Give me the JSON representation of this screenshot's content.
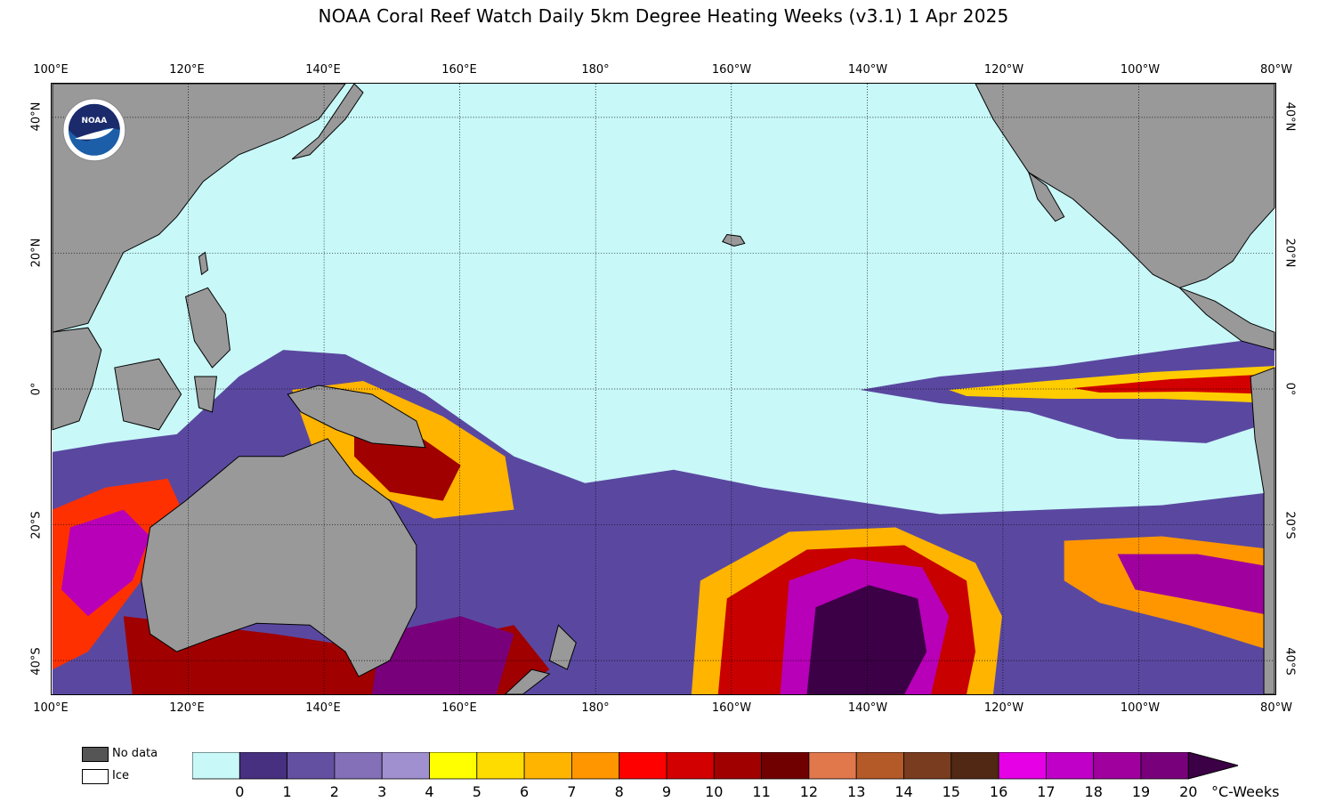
{
  "title": "NOAA Coral Reef Watch Daily 5km Degree Heating Weeks  (v3.1)   1 Apr 2025",
  "map": {
    "lon_labels": [
      "100°E",
      "120°E",
      "140°E",
      "160°E",
      "180°",
      "160°W",
      "140°W",
      "120°W",
      "100°W",
      "80°W"
    ],
    "lat_labels": [
      "40°N",
      "20°N",
      "0°",
      "20°S",
      "40°S"
    ],
    "ocean_color": "#c8f8f8",
    "land_color": "#999999",
    "logo_text": "NOAA"
  },
  "legend": {
    "no_data_label": "No data",
    "ice_label": "Ice",
    "no_data_color": "#555555",
    "ice_color": "#ffffff"
  },
  "colorbar": {
    "unit": "°C-Weeks",
    "ticks": [
      "0",
      "1",
      "2",
      "3",
      "4",
      "5",
      "6",
      "7",
      "8",
      "9",
      "10",
      "11",
      "12",
      "13",
      "14",
      "15",
      "16",
      "17",
      "18",
      "19",
      "20"
    ],
    "colors": [
      "#c8f8f8",
      "#483080",
      "#6450a0",
      "#8470b8",
      "#a090d0",
      "#ffff00",
      "#ffdc00",
      "#ffb400",
      "#ff9600",
      "#ff0000",
      "#d20000",
      "#a00000",
      "#700000",
      "#e0784c",
      "#b45a28",
      "#7a3c1e",
      "#502814",
      "#e600e6",
      "#c000c8",
      "#a0009e",
      "#78007a",
      "#3c0046"
    ]
  }
}
